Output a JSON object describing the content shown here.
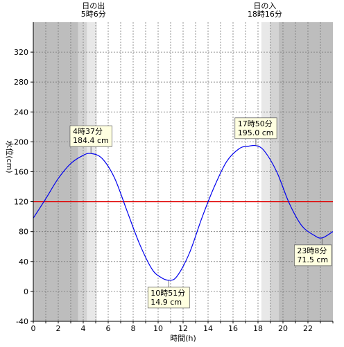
{
  "chart_data": {
    "type": "line",
    "xlabel": "時間(h)",
    "ylabel": "水位(cm)",
    "xlim": [
      0,
      24
    ],
    "ylim": [
      -40,
      360
    ],
    "x_ticks": [
      0,
      2,
      4,
      6,
      8,
      10,
      12,
      14,
      16,
      18,
      20,
      22
    ],
    "y_ticks": [
      -40,
      0,
      40,
      80,
      120,
      160,
      200,
      240,
      280,
      320
    ],
    "grid": true,
    "reference_line": {
      "y": 120,
      "color": "#e00000"
    },
    "sun": {
      "sunrise": {
        "label": "日の出",
        "time": "5時6分",
        "hour": 5.1
      },
      "sunset": {
        "label": "日の入",
        "time": "18時16分",
        "hour": 18.27
      }
    },
    "night_shading": {
      "dark": "#bdbdbd",
      "twilight_mid": "#d3d3d3",
      "twilight_light": "#e8e8e8"
    },
    "series": [
      {
        "color": "#0000ee",
        "x": [
          0,
          1,
          2,
          3,
          4,
          4.62,
          5.5,
          6.5,
          7.5,
          8.5,
          9.5,
          10.2,
          10.85,
          11.5,
          12.5,
          13.5,
          14.5,
          15.5,
          16.5,
          17.2,
          17.83,
          18.5,
          19.5,
          20.5,
          21.5,
          22.5,
          23.13,
          24
        ],
        "values": [
          98,
          124,
          151,
          171,
          182,
          184.4,
          178,
          152,
          108,
          64,
          30,
          19,
          14.9,
          20,
          51,
          98,
          140,
          174,
          191,
          194,
          195.0,
          188,
          160,
          118,
          88,
          75,
          71.5,
          80
        ]
      }
    ],
    "annotations": [
      {
        "time": "4時37分",
        "value": "184.4 cm",
        "x": 4.62,
        "y": 184.4,
        "placement": "above"
      },
      {
        "time": "10時51分",
        "value": "14.9 cm",
        "x": 10.85,
        "y": 14.9,
        "placement": "below"
      },
      {
        "time": "17時50分",
        "value": "195.0 cm",
        "x": 17.83,
        "y": 195.0,
        "placement": "above"
      },
      {
        "time": "23時8分",
        "value": "71.5 cm",
        "x": 23.13,
        "y": 71.5,
        "placement": "below"
      }
    ]
  }
}
